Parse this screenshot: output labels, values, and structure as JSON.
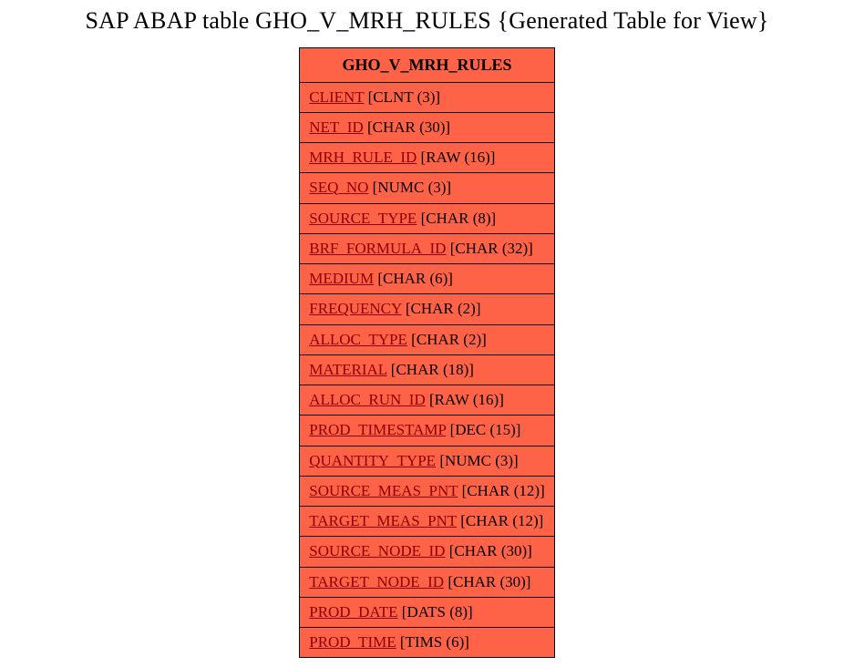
{
  "title": "SAP ABAP table GHO_V_MRH_RULES {Generated Table for View}",
  "table": {
    "name": "GHO_V_MRH_RULES",
    "header_bg": "#ff6347",
    "row_bg": "#ff6347",
    "border_color": "#000000",
    "text_color": "#000000",
    "field_color": "#8b0000",
    "fields": [
      {
        "field": "CLIENT",
        "type": "[CLNT (3)]"
      },
      {
        "field": "NET_ID",
        "type": "[CHAR (30)]"
      },
      {
        "field": "MRH_RULE_ID",
        "type": "[RAW (16)]"
      },
      {
        "field": "SEQ_NO",
        "type": "[NUMC (3)]"
      },
      {
        "field": "SOURCE_TYPE",
        "type": "[CHAR (8)]"
      },
      {
        "field": "BRF_FORMULA_ID",
        "type": "[CHAR (32)]"
      },
      {
        "field": "MEDIUM",
        "type": "[CHAR (6)]"
      },
      {
        "field": "FREQUENCY",
        "type": "[CHAR (2)]"
      },
      {
        "field": "ALLOC_TYPE",
        "type": "[CHAR (2)]"
      },
      {
        "field": "MATERIAL",
        "type": "[CHAR (18)]"
      },
      {
        "field": "ALLOC_RUN_ID",
        "type": "[RAW (16)]"
      },
      {
        "field": "PROD_TIMESTAMP",
        "type": "[DEC (15)]"
      },
      {
        "field": "QUANTITY_TYPE",
        "type": "[NUMC (3)]"
      },
      {
        "field": "SOURCE_MEAS_PNT",
        "type": "[CHAR (12)]"
      },
      {
        "field": "TARGET_MEAS_PNT",
        "type": "[CHAR (12)]"
      },
      {
        "field": "SOURCE_NODE_ID",
        "type": "[CHAR (30)]"
      },
      {
        "field": "TARGET_NODE_ID",
        "type": "[CHAR (30)]"
      },
      {
        "field": "PROD_DATE",
        "type": "[DATS (8)]"
      },
      {
        "field": "PROD_TIME",
        "type": "[TIMS (6)]"
      }
    ]
  }
}
